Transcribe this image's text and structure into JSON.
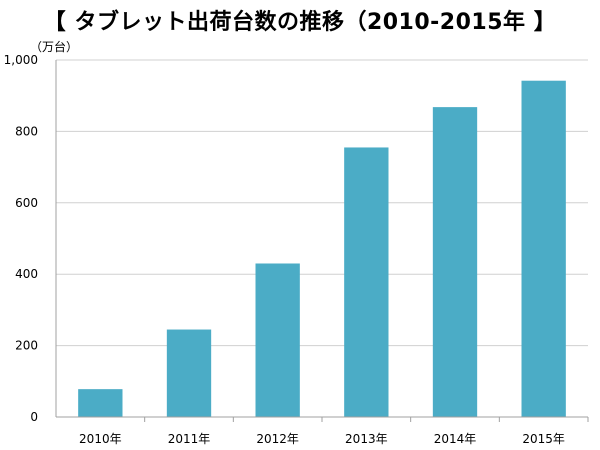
{
  "title": "【 タブレット出荷台数の推移（2010-2015年 】",
  "unit_label": "（万台）",
  "colors": {
    "bar": "#4BACC6",
    "grid": "#D0D0D0",
    "axis": "#A0A0A0"
  },
  "chart_data": {
    "type": "bar",
    "title": "【 タブレット出荷台数の推移（2010-2015年 】",
    "xlabel": "",
    "ylabel": "（万台）",
    "categories": [
      "2010年",
      "2011年",
      "2012年",
      "2013年",
      "2014年",
      "2015年"
    ],
    "values": [
      78,
      245,
      430,
      755,
      868,
      942
    ],
    "ylim": [
      0,
      1000
    ],
    "yticks": [
      0,
      200,
      400,
      600,
      800,
      1000
    ],
    "ytick_labels": [
      "0",
      "200",
      "400",
      "600",
      "800",
      "1,000"
    ],
    "grid": true,
    "legend": "none"
  }
}
